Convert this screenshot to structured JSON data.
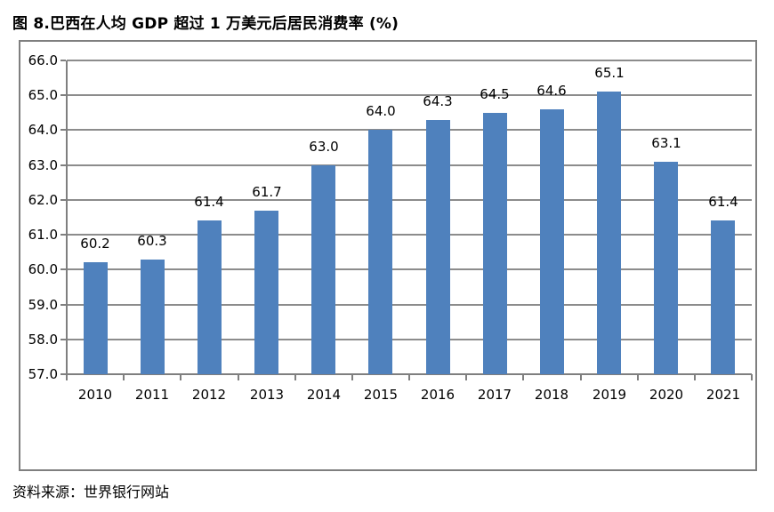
{
  "title": "图 8.巴西在人均 GDP 超过 1 万美元后居民消费率 (%)",
  "source": "资料来源：世界银行网站",
  "chart_data": {
    "type": "bar",
    "title": "图 8.巴西在人均 GDP 超过 1 万美元后居民消费率 (%)",
    "categories": [
      "2010",
      "2011",
      "2012",
      "2013",
      "2014",
      "2015",
      "2016",
      "2017",
      "2018",
      "2019",
      "2020",
      "2021"
    ],
    "values": [
      60.2,
      60.3,
      61.4,
      61.7,
      63.0,
      64.0,
      64.3,
      64.5,
      64.6,
      65.1,
      63.1,
      61.4
    ],
    "data_labels": [
      "60.2",
      "60.3",
      "61.4",
      "61.7",
      "63.0",
      "64.0",
      "64.3",
      "64.5",
      "64.6",
      "65.1",
      "63.1",
      "61.4"
    ],
    "xlabel": "",
    "ylabel": "",
    "ylim": [
      57.0,
      66.0
    ],
    "ytick_step": 1.0,
    "ytick_labels": [
      "66.0",
      "65.0",
      "64.0",
      "63.0",
      "62.0",
      "61.0",
      "60.0",
      "59.0",
      "58.0",
      "57.0"
    ],
    "grid": true,
    "legend_position": "none",
    "bar_color": "#4f81bd",
    "grid_color": "#8c8c8c",
    "axis_color": "#7f7f7f",
    "frame_border_color": "#7f7f7f",
    "label_color": "#000000"
  }
}
